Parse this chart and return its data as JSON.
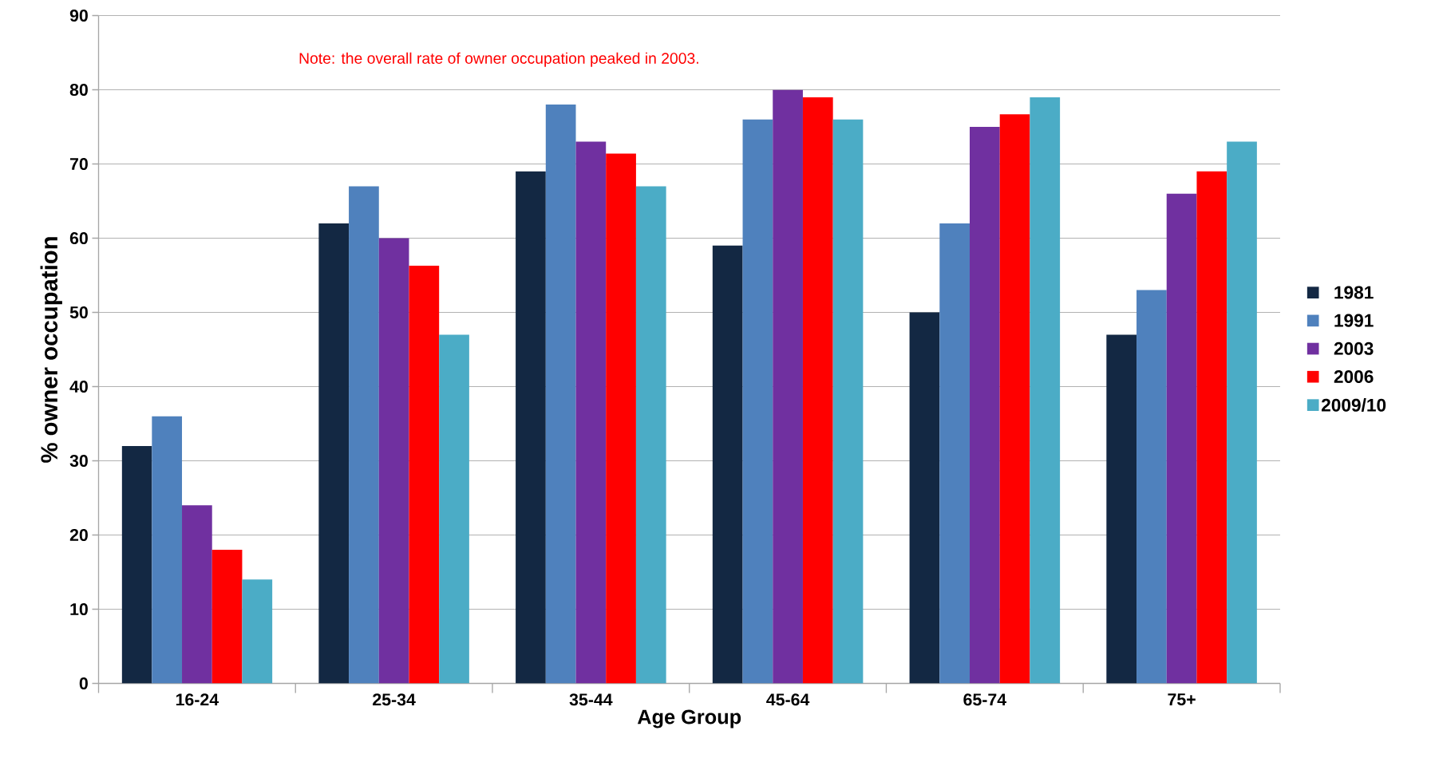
{
  "chart_data": {
    "type": "bar",
    "xlabel": "Age Group",
    "ylabel": "% owner occupation",
    "categories": [
      "16-24",
      "25-34",
      "35-44",
      "45-64",
      "65-74",
      "75+"
    ],
    "series": [
      {
        "name": "1981",
        "color": "#132843",
        "values": [
          32,
          62,
          69,
          59,
          50,
          47
        ]
      },
      {
        "name": "1991",
        "color": "#4f81bd",
        "values": [
          36,
          67,
          78,
          76,
          62,
          53
        ]
      },
      {
        "name": "2003",
        "color": "#7030a0",
        "values": [
          24,
          60,
          73,
          80,
          75,
          66
        ]
      },
      {
        "name": "2006",
        "color": "#ff0000",
        "values": [
          18,
          56.3,
          71.4,
          79,
          76.7,
          69
        ]
      },
      {
        "name": "2009/10",
        "color": "#4bacc6",
        "values": [
          14,
          47,
          67,
          76,
          79,
          73
        ]
      }
    ],
    "ylim": [
      0,
      90
    ],
    "yticks": [
      0,
      10,
      20,
      30,
      40,
      50,
      60,
      70,
      80,
      90
    ],
    "grid": "y",
    "legend": "right",
    "annotations": [
      "Note: the overall rate of owner occupation peaked in 2003."
    ]
  }
}
